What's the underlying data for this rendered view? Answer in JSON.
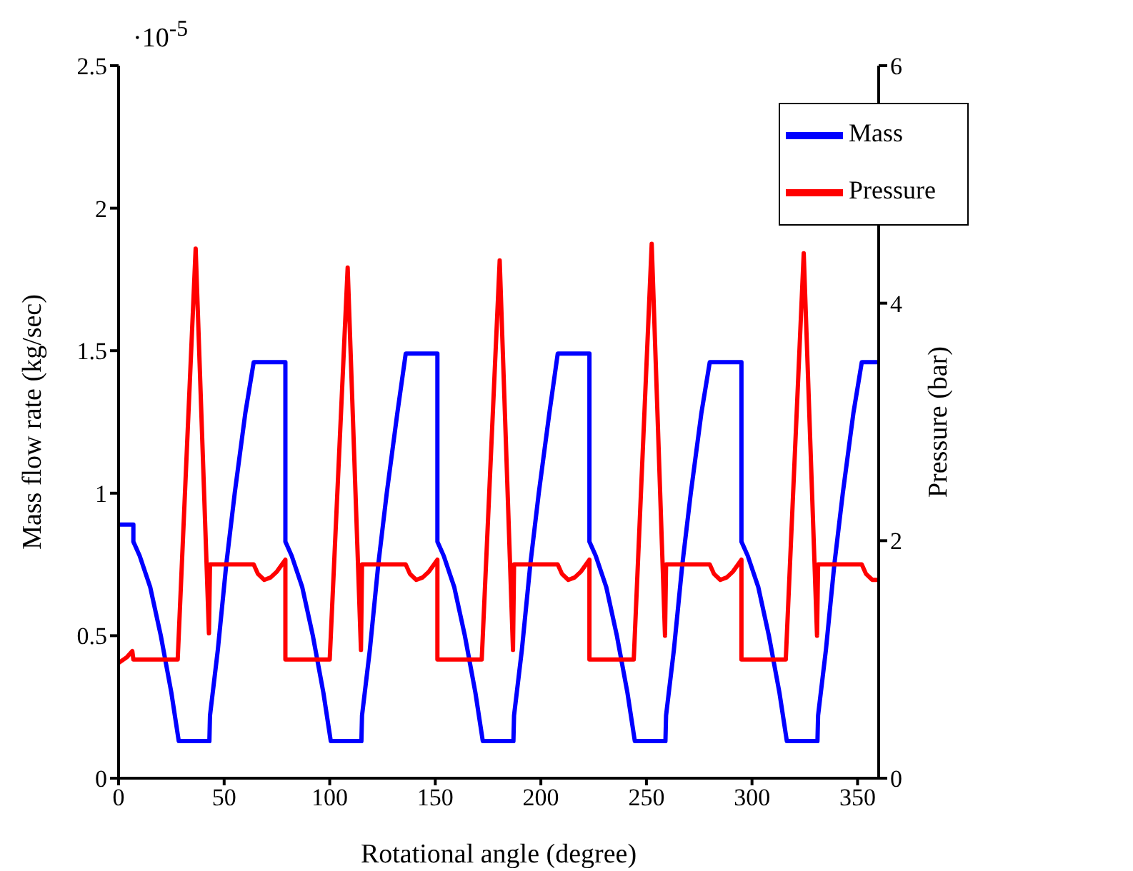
{
  "chart_data": {
    "type": "line",
    "xlabel": "Rotational angle (degree)",
    "ylabel": "Mass flow rate (kg/sec)",
    "y2label": "Pressure (bar)",
    "annotations": [
      "·10$^{-5}$"
    ],
    "xlim": [
      0,
      360
    ],
    "xticks": [
      0,
      50,
      100,
      150,
      200,
      250,
      300,
      350
    ],
    "ylim": [
      0,
      2.5
    ],
    "yticks": [
      0,
      0.5,
      1,
      1.5,
      2,
      2.5
    ],
    "y2lim": [
      0,
      6
    ],
    "y2ticks": [
      0,
      2,
      4,
      6
    ],
    "grid": false,
    "legend": "top right",
    "marker": "none",
    "line_style": "solid",
    "series": [
      {
        "name": "Mass",
        "color": "#0000ff",
        "x": [
          0,
          7,
          7,
          10,
          15,
          20,
          25,
          28.5,
          43,
          43.3,
          47,
          51,
          55,
          60,
          64,
          79,
          79,
          82,
          87,
          92,
          97,
          100.5,
          115,
          115.3,
          119,
          123,
          127,
          132,
          136,
          151,
          151,
          154,
          159,
          164,
          169,
          172.5,
          187,
          187.3,
          191,
          195,
          199,
          204,
          208,
          223,
          223,
          226,
          231,
          236,
          241,
          244.5,
          259,
          259.3,
          263,
          267,
          271,
          276,
          280,
          295,
          295,
          298,
          303,
          308,
          313,
          316.5,
          331,
          331.3,
          335,
          339,
          343,
          348,
          352,
          360
        ],
        "values": [
          0.89,
          0.89,
          0.83,
          0.78,
          0.67,
          0.5,
          0.3,
          0.13,
          0.13,
          0.22,
          0.45,
          0.75,
          1.0,
          1.28,
          1.46,
          1.46,
          0.83,
          0.78,
          0.67,
          0.5,
          0.3,
          0.13,
          0.13,
          0.22,
          0.45,
          0.75,
          1.0,
          1.28,
          1.49,
          1.49,
          0.83,
          0.78,
          0.67,
          0.5,
          0.3,
          0.13,
          0.13,
          0.22,
          0.45,
          0.75,
          1.0,
          1.28,
          1.49,
          1.49,
          0.83,
          0.78,
          0.67,
          0.5,
          0.3,
          0.13,
          0.13,
          0.22,
          0.45,
          0.75,
          1.0,
          1.28,
          1.46,
          1.46,
          0.83,
          0.78,
          0.67,
          0.5,
          0.3,
          0.13,
          0.13,
          0.22,
          0.45,
          0.75,
          1.0,
          1.28,
          1.46,
          1.46
        ]
      },
      {
        "name": "Pressure",
        "color": "#ff0000",
        "axis": "y2",
        "x": [
          0,
          4,
          6.5,
          7,
          28,
          36.5,
          42.8,
          43.3,
          64,
          66,
          69,
          72,
          75,
          79,
          79,
          100,
          108.5,
          114.8,
          115.3,
          136,
          138,
          141,
          144,
          147,
          151,
          151,
          172,
          180.5,
          186.8,
          187.3,
          208,
          210,
          213,
          216,
          219,
          223,
          223,
          244,
          252.5,
          258.8,
          259.3,
          280,
          282,
          285,
          288,
          291,
          295,
          295,
          316,
          324.5,
          330.8,
          331.3,
          352,
          354,
          357,
          360
        ],
        "values": [
          0.97,
          1.02,
          1.07,
          1.0,
          1.0,
          4.46,
          1.22,
          1.8,
          1.8,
          1.72,
          1.67,
          1.69,
          1.74,
          1.84,
          1.0,
          1.0,
          4.3,
          1.08,
          1.8,
          1.8,
          1.72,
          1.67,
          1.69,
          1.74,
          1.84,
          1.0,
          1.0,
          4.36,
          1.08,
          1.8,
          1.8,
          1.72,
          1.67,
          1.69,
          1.74,
          1.84,
          1.0,
          1.0,
          4.5,
          1.2,
          1.8,
          1.8,
          1.72,
          1.67,
          1.69,
          1.74,
          1.84,
          1.0,
          1.0,
          4.42,
          1.2,
          1.8,
          1.8,
          1.72,
          1.67,
          1.67
        ]
      }
    ]
  }
}
